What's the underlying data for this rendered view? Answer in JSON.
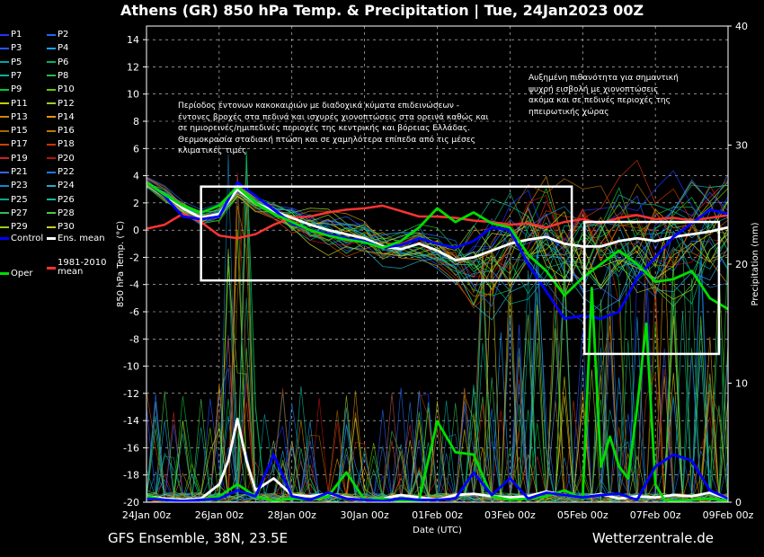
{
  "title": "Athens  (GR)  850 hPa Temp. & Precipitation | Tue, 24Jan2023 00Z",
  "footer": {
    "left": "GFS Ensemble, 38N, 23.5E",
    "right": "Wetterzentrale.de"
  },
  "annotations": {
    "left": [
      "Περίοδος έντονων κακοκαιριών με διαδοχικά κύματα επιδεινώσεων -",
      "έντονες βροχές στα πεδινά και ισχυρές χιονοπτώσεις στα ορεινά καθώς και",
      "σε ημιορεινές/ημιπεδινές περιοχές της κεντρικής και βόρειας Ελλάδας.",
      "Θερμοκρασία σταδιακή πτώση και σε χαμηλότερα επίπεδα από τις μέσες",
      "κλιματικές τιμές"
    ],
    "right": [
      "Αυξημένη πιθανότητα για σημαντική",
      "ψυχρή εισβολή με χιονοπτώσεις",
      "ακόμα και σε πεδινές περιοχές της",
      "ηπειρωτικής χώρας"
    ]
  },
  "legend": [
    {
      "label": "P1",
      "color": "#2233ff"
    },
    {
      "label": "P2",
      "color": "#2266ff"
    },
    {
      "label": "P3",
      "color": "#2a55ff"
    },
    {
      "label": "P4",
      "color": "#1aa3ff"
    },
    {
      "label": "P5",
      "color": "#00a6a6"
    },
    {
      "label": "P6",
      "color": "#00b36b"
    },
    {
      "label": "P7",
      "color": "#00b3a0"
    },
    {
      "label": "P8",
      "color": "#22bb44"
    },
    {
      "label": "P9",
      "color": "#00cc33"
    },
    {
      "label": "P10",
      "color": "#66cc00"
    },
    {
      "label": "P11",
      "color": "#cccc00"
    },
    {
      "label": "P12",
      "color": "#99cc33"
    },
    {
      "label": "P13",
      "color": "#cc8800"
    },
    {
      "label": "P14",
      "color": "#e69900"
    },
    {
      "label": "P15",
      "color": "#aa6600"
    },
    {
      "label": "P16",
      "color": "#c07a00"
    },
    {
      "label": "P17",
      "color": "#cc4400"
    },
    {
      "label": "P18",
      "color": "#cc3300"
    },
    {
      "label": "P19",
      "color": "#cc2222"
    },
    {
      "label": "P20",
      "color": "#bb1111"
    },
    {
      "label": "P21",
      "color": "#3366ee"
    },
    {
      "label": "P22",
      "color": "#2277dd"
    },
    {
      "label": "P23",
      "color": "#1188cc"
    },
    {
      "label": "P24",
      "color": "#22aacc"
    },
    {
      "label": "P25",
      "color": "#00aa88"
    },
    {
      "label": "P26",
      "color": "#11bb99"
    },
    {
      "label": "P27",
      "color": "#33bb55"
    },
    {
      "label": "P28",
      "color": "#44cc44"
    },
    {
      "label": "P29",
      "color": "#99cc22"
    },
    {
      "label": "P30",
      "color": "#cccc22"
    },
    {
      "label": "Control",
      "color": "#0000ff"
    },
    {
      "label": "Ens. mean",
      "color": "#ffffff"
    },
    {
      "label": "Oper",
      "color": "#00dd00"
    },
    {
      "label": "1981-2010 mean",
      "color": "#ff3333"
    }
  ],
  "chart_data": {
    "type": "line",
    "title": "Athens  (GR)  850 hPa Temp. & Precipitation | Tue, 24Jan2023 00Z",
    "xlabel": "Date (UTC)",
    "ylabel": "850 hPa Temp. (°C)",
    "y2label": "Precipitation (mm)",
    "ylim": [
      -20,
      15
    ],
    "y2lim": [
      0,
      40
    ],
    "yticks": [
      -20,
      -18,
      -16,
      -14,
      -12,
      -10,
      -8,
      -6,
      -4,
      -2,
      0,
      2,
      4,
      6,
      8,
      10,
      12,
      14
    ],
    "y2ticks": [
      0,
      10,
      20,
      30,
      40
    ],
    "xlim_days": [
      0,
      16
    ],
    "xticks": [
      "24Jan 00z",
      "26Jan 00z",
      "28Jan 00z",
      "30Jan 00z",
      "01Feb 00z",
      "03Feb 00z",
      "05Feb 00z",
      "07Feb 00z",
      "09Feb 00z"
    ],
    "grid": "dashed",
    "series": [
      {
        "name": "1981-2010 mean",
        "axis": "temp",
        "color": "#ff3333",
        "x": [
          0,
          0.5,
          1,
          1.5,
          2,
          2.5,
          3,
          3.5,
          4,
          4.5,
          5,
          5.5,
          6,
          6.5,
          7,
          7.5,
          8,
          8.5,
          9,
          9.5,
          10,
          10.5,
          11,
          11.5,
          12,
          12.5,
          13,
          13.5,
          14,
          14.5,
          15,
          15.5,
          16
        ],
        "y": [
          0.1,
          0.4,
          1.2,
          0.6,
          -0.4,
          -0.6,
          -0.3,
          0.4,
          0.9,
          1.0,
          1.3,
          1.5,
          1.6,
          1.8,
          1.4,
          1.0,
          1.0,
          0.9,
          0.7,
          0.6,
          0.4,
          0.5,
          0.2,
          0.6,
          0.8,
          0.5,
          0.9,
          1.1,
          0.8,
          0.9,
          0.7,
          0.9,
          1.1
        ]
      },
      {
        "name": "Ens. mean",
        "axis": "temp",
        "color": "#ffffff",
        "x": [
          0,
          0.5,
          1,
          1.5,
          2,
          2.5,
          3,
          3.5,
          4,
          4.5,
          5,
          5.5,
          6,
          6.5,
          7,
          7.5,
          8,
          8.5,
          9,
          9.5,
          10,
          10.5,
          11,
          11.5,
          12,
          12.5,
          13,
          13.5,
          14,
          14.5,
          15,
          15.5,
          16
        ],
        "y": [
          3.5,
          2.6,
          1.6,
          0.9,
          1.2,
          3.0,
          2.0,
          1.4,
          0.9,
          0.4,
          0.0,
          -0.3,
          -0.6,
          -1.2,
          -1.4,
          -1.0,
          -1.5,
          -2.2,
          -2.0,
          -1.5,
          -1.0,
          -0.7,
          -0.5,
          -1.0,
          -1.2,
          -1.2,
          -0.8,
          -0.6,
          -0.8,
          -0.5,
          -0.3,
          -0.1,
          0.2
        ]
      },
      {
        "name": "Control",
        "axis": "temp",
        "color": "#0000ff",
        "x": [
          0,
          0.5,
          1,
          1.5,
          2,
          2.5,
          3,
          3.5,
          4,
          4.5,
          5,
          5.5,
          6,
          6.5,
          7,
          7.5,
          8,
          8.5,
          9,
          9.5,
          10,
          10.5,
          11,
          11.5,
          12,
          12.5,
          13,
          13.5,
          14,
          14.5,
          15,
          15.5,
          16
        ],
        "y": [
          3.5,
          2.5,
          1.0,
          0.8,
          1.0,
          3.5,
          2.5,
          1.5,
          0.5,
          0.0,
          -0.3,
          -0.6,
          -0.8,
          -1.3,
          -1.1,
          -0.6,
          -1.0,
          -1.3,
          -0.8,
          0.2,
          0.0,
          -2.5,
          -4.5,
          -6.5,
          -6.3,
          -6.5,
          -6.0,
          -3.5,
          -2.0,
          -0.5,
          0.5,
          1.5,
          1.2
        ]
      },
      {
        "name": "Oper",
        "axis": "temp",
        "color": "#00dd00",
        "x": [
          0,
          0.5,
          1,
          1.5,
          2,
          2.5,
          3,
          3.5,
          4,
          4.5,
          5,
          5.5,
          6,
          6.5,
          7,
          7.5,
          8,
          8.5,
          9,
          9.5,
          10,
          10.5,
          11,
          11.5,
          12,
          12.5,
          13,
          13.5,
          14,
          14.5,
          15,
          15.5,
          16
        ],
        "y": [
          3.5,
          2.6,
          1.8,
          1.3,
          1.8,
          3.2,
          2.0,
          1.2,
          0.6,
          0.0,
          -0.4,
          -0.7,
          -0.9,
          -1.3,
          -0.8,
          0.2,
          1.6,
          0.6,
          1.3,
          0.5,
          0.2,
          -1.8,
          -3.0,
          -4.8,
          -3.5,
          -2.5,
          -1.5,
          -2.5,
          -3.8,
          -3.6,
          -3.0,
          -5.0,
          -5.8
        ]
      },
      {
        "name": "Ens. mean",
        "axis": "precip",
        "color": "#ffffff",
        "x": [
          0,
          0.5,
          1,
          1.5,
          2,
          2.25,
          2.5,
          2.75,
          3,
          3.5,
          4,
          4.5,
          5,
          5.5,
          6,
          6.5,
          7,
          7.5,
          8,
          8.5,
          9,
          9.5,
          10,
          10.5,
          11,
          11.5,
          12,
          12.5,
          13,
          13.5,
          14,
          14.5,
          15,
          15.5,
          16
        ],
        "y": [
          0.5,
          0.3,
          0.2,
          0.3,
          1.5,
          3.5,
          7.0,
          3.5,
          1.0,
          2.0,
          0.6,
          0.5,
          0.7,
          0.4,
          0.2,
          0.3,
          0.6,
          0.4,
          0.2,
          0.6,
          0.7,
          0.5,
          0.4,
          0.5,
          0.9,
          0.6,
          0.4,
          0.7,
          0.3,
          0.5,
          0.4,
          0.6,
          0.5,
          0.8,
          0.3
        ]
      },
      {
        "name": "Oper",
        "axis": "precip",
        "color": "#00dd00",
        "x": [
          0,
          0.5,
          1,
          1.5,
          2,
          2.5,
          3,
          3.5,
          4,
          4.5,
          5,
          5.5,
          6,
          6.5,
          7,
          7.5,
          8,
          8.5,
          9,
          9.5,
          10,
          10.5,
          11,
          11.5,
          12,
          12.25,
          12.5,
          12.75,
          13,
          13.25,
          13.5,
          13.75,
          14,
          14.25,
          14.5,
          15,
          15.5,
          16
        ],
        "y": [
          0.5,
          0.2,
          0.1,
          0.2,
          0.5,
          1.5,
          0.5,
          0.1,
          0.3,
          0.2,
          0.5,
          2.5,
          0.2,
          0.3,
          0.1,
          0.2,
          6.8,
          4.2,
          4.0,
          0.5,
          0.2,
          0.3,
          0.5,
          1.0,
          0.3,
          18.0,
          3.0,
          5.5,
          3.0,
          2.0,
          8.0,
          15.0,
          1.5,
          0.2,
          0.1,
          0.2,
          0.3,
          0.1
        ]
      },
      {
        "name": "Control",
        "axis": "precip",
        "color": "#0000ff",
        "x": [
          0,
          0.5,
          1,
          1.5,
          2,
          2.5,
          3,
          3.5,
          4,
          4.5,
          5,
          5.5,
          6,
          6.5,
          7,
          7.5,
          8,
          8.5,
          9,
          9.5,
          10,
          10.5,
          11,
          11.5,
          12,
          12.5,
          13,
          13.5,
          14,
          14.5,
          15,
          15.5,
          16
        ],
        "y": [
          0.3,
          0.2,
          0.1,
          0.2,
          0.3,
          1.0,
          0.5,
          4.0,
          0.5,
          0.2,
          0.8,
          0.3,
          0.2,
          0.1,
          0.3,
          0.2,
          0.2,
          0.3,
          2.5,
          0.6,
          2.0,
          0.3,
          0.8,
          0.6,
          0.4,
          0.6,
          0.7,
          0.2,
          3.0,
          4.0,
          3.5,
          1.0,
          0.3
        ]
      }
    ]
  }
}
